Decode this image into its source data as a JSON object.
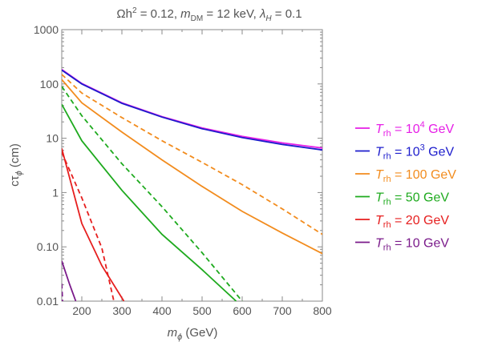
{
  "chart_data": {
    "type": "line",
    "title": "Ωh² = 0.12, m_DM = 12 keV, λ_H = 0.1",
    "title_parts": {
      "a": "Ωh",
      "a_sup": "2",
      "b": " = 0.12, ",
      "m": "m",
      "m_sub": "DM",
      "c": " = 12 keV, ",
      "l": "λ",
      "l_sub": "H",
      "d": " = 0.1"
    },
    "xlabel": "m_ϕ (GeV)",
    "xlabel_parts": {
      "m": "m",
      "sub": "ϕ",
      "unit": " (GeV)"
    },
    "ylabel": "cτ_ϕ (cm)",
    "ylabel_parts": {
      "c": "cτ",
      "sub": "ϕ",
      "unit": " (cm)"
    },
    "xlim": [
      150,
      800
    ],
    "ylim": [
      0.01,
      1000
    ],
    "yscale": "log",
    "x_ticks": [
      200,
      300,
      400,
      500,
      600,
      700,
      800
    ],
    "x_tick_labels": [
      "200",
      "300",
      "400",
      "500",
      "600",
      "700",
      "800"
    ],
    "y_ticks": [
      0.01,
      0.1,
      1,
      10,
      100,
      1000
    ],
    "y_tick_labels": [
      "0.01",
      "0.10",
      "1",
      "10",
      "100",
      "1000"
    ],
    "legend_position": "right",
    "series": [
      {
        "name": "T_rh = 10^4 GeV",
        "label": {
          "t": "T",
          "sub": "rh",
          "eq": " = 10",
          "sup": "4",
          "unit": " GeV"
        },
        "color": "#e61ee6",
        "solid": [
          [
            150,
            185
          ],
          [
            200,
            102
          ],
          [
            300,
            45
          ],
          [
            400,
            25
          ],
          [
            500,
            15.5
          ],
          [
            600,
            10.8
          ],
          [
            700,
            8.2
          ],
          [
            800,
            6.6
          ]
        ],
        "dashed": []
      },
      {
        "name": "T_rh = 10^3 GeV",
        "label": {
          "t": "T",
          "sub": "rh",
          "eq": " = 10",
          "sup": "3",
          "unit": " GeV"
        },
        "color": "#1c1ccc",
        "solid": [
          [
            150,
            180
          ],
          [
            200,
            100
          ],
          [
            300,
            44
          ],
          [
            400,
            24.5
          ],
          [
            500,
            15
          ],
          [
            600,
            10.3
          ],
          [
            700,
            7.7
          ],
          [
            800,
            6.1
          ]
        ],
        "dashed": []
      },
      {
        "name": "T_rh = 100 GeV",
        "label": {
          "t": "T",
          "sub": "rh",
          "eq": " = 100",
          "sup": "",
          "unit": " GeV"
        },
        "color": "#f28c1e",
        "solid": [
          [
            150,
            120
          ],
          [
            200,
            45
          ],
          [
            300,
            13
          ],
          [
            400,
            4
          ],
          [
            500,
            1.3
          ],
          [
            600,
            0.45
          ],
          [
            700,
            0.18
          ],
          [
            800,
            0.075
          ]
        ],
        "dashed": [
          [
            150,
            150
          ],
          [
            200,
            68
          ],
          [
            300,
            24
          ],
          [
            400,
            9
          ],
          [
            500,
            3.6
          ],
          [
            600,
            1.4
          ],
          [
            700,
            0.5
          ],
          [
            800,
            0.17
          ]
        ]
      },
      {
        "name": "T_rh = 50 GeV",
        "label": {
          "t": "T",
          "sub": "rh",
          "eq": " = 50",
          "sup": "",
          "unit": " GeV"
        },
        "color": "#1eaa1e",
        "solid": [
          [
            150,
            42
          ],
          [
            200,
            9
          ],
          [
            300,
            1.1
          ],
          [
            400,
            0.17
          ],
          [
            500,
            0.038
          ],
          [
            585,
            0.01
          ]
        ],
        "dashed": [
          [
            150,
            90
          ],
          [
            200,
            26
          ],
          [
            300,
            3.4
          ],
          [
            400,
            0.55
          ],
          [
            500,
            0.078
          ],
          [
            600,
            0.01
          ]
        ]
      },
      {
        "name": "T_rh = 20 GeV",
        "label": {
          "t": "T",
          "sub": "rh",
          "eq": " = 20",
          "sup": "",
          "unit": " GeV"
        },
        "color": "#e61e1e",
        "solid": [
          [
            150,
            6.5
          ],
          [
            200,
            0.27
          ],
          [
            250,
            0.045
          ],
          [
            305,
            0.01
          ]
        ],
        "dashed": [
          [
            150,
            5.5
          ],
          [
            200,
            0.8
          ],
          [
            250,
            0.095
          ],
          [
            280,
            0.01
          ]
        ]
      },
      {
        "name": "T_rh = 10 GeV",
        "label": {
          "t": "T",
          "sub": "rh",
          "eq": " = 10",
          "sup": "",
          "unit": " GeV"
        },
        "color": "#7a1a8a",
        "solid": [
          [
            150,
            0.055
          ],
          [
            170,
            0.02
          ],
          [
            185,
            0.01
          ]
        ],
        "dashed": [
          [
            150,
            0.021
          ],
          [
            152,
            0.01
          ]
        ]
      }
    ]
  }
}
